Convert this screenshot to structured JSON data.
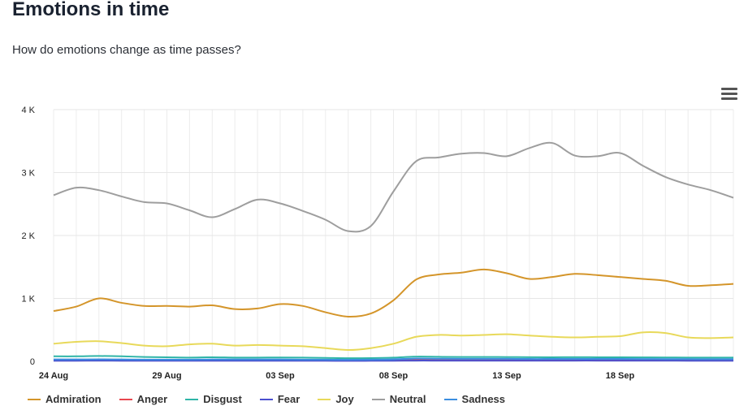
{
  "header": {
    "title": "Emotions in time",
    "subtitle": "How do emotions change as time passes?"
  },
  "menu_icon": "hamburger-menu-icon",
  "chart_data": {
    "type": "line",
    "x": [
      "2021-08-24",
      "2021-08-25",
      "2021-08-26",
      "2021-08-27",
      "2021-08-28",
      "2021-08-29",
      "2021-08-30",
      "2021-08-31",
      "2021-09-01",
      "2021-09-02",
      "2021-09-03",
      "2021-09-04",
      "2021-09-05",
      "2021-09-06",
      "2021-09-07",
      "2021-09-08",
      "2021-09-09",
      "2021-09-10",
      "2021-09-11",
      "2021-09-12",
      "2021-09-13",
      "2021-09-14",
      "2021-09-15",
      "2021-09-16",
      "2021-09-17",
      "2021-09-18",
      "2021-09-19",
      "2021-09-20",
      "2021-09-21",
      "2021-09-22",
      "2021-09-23"
    ],
    "x_tick_labels": [
      "24 Aug",
      "29 Aug",
      "03 Sep",
      "08 Sep",
      "13 Sep",
      "18 Sep"
    ],
    "x_tick_dates": [
      "2021-08-24",
      "2021-08-29",
      "2021-09-03",
      "2021-09-08",
      "2021-09-13",
      "2021-09-18"
    ],
    "y_tick_labels": [
      "0",
      "1 K",
      "2 K",
      "3 K",
      "4 K"
    ],
    "ylim": [
      0,
      4000
    ],
    "grid": true,
    "legend_position": "bottom",
    "series": [
      {
        "name": "Admiration",
        "color": "#d4952a",
        "values": [
          800,
          870,
          1000,
          930,
          880,
          880,
          870,
          890,
          830,
          840,
          910,
          880,
          780,
          710,
          760,
          970,
          1300,
          1380,
          1410,
          1460,
          1400,
          1310,
          1340,
          1390,
          1370,
          1340,
          1310,
          1280,
          1200,
          1210,
          1230
        ]
      },
      {
        "name": "Anger",
        "color": "#e8474f",
        "values": [
          20,
          20,
          22,
          20,
          18,
          18,
          17,
          18,
          17,
          17,
          18,
          17,
          16,
          15,
          16,
          18,
          22,
          22,
          22,
          23,
          22,
          21,
          21,
          22,
          22,
          21,
          21,
          20,
          20,
          20,
          20
        ]
      },
      {
        "name": "Disgust",
        "color": "#2fb5a7",
        "values": [
          80,
          80,
          85,
          80,
          70,
          65,
          60,
          65,
          60,
          60,
          62,
          60,
          55,
          50,
          52,
          60,
          75,
          72,
          70,
          70,
          68,
          66,
          65,
          66,
          65,
          64,
          63,
          62,
          60,
          60,
          60
        ]
      },
      {
        "name": "Fear",
        "color": "#4a4fcf",
        "values": [
          10,
          10,
          12,
          10,
          10,
          10,
          9,
          10,
          9,
          9,
          10,
          9,
          9,
          8,
          9,
          10,
          12,
          12,
          12,
          12,
          12,
          11,
          11,
          12,
          12,
          11,
          11,
          11,
          10,
          10,
          10
        ]
      },
      {
        "name": "Joy",
        "color": "#e8d95a",
        "values": [
          280,
          310,
          320,
          290,
          250,
          240,
          270,
          280,
          250,
          260,
          250,
          240,
          210,
          180,
          210,
          280,
          390,
          420,
          410,
          420,
          430,
          410,
          390,
          380,
          390,
          400,
          460,
          450,
          380,
          370,
          380
        ]
      },
      {
        "name": "Neutral",
        "color": "#9e9e9e",
        "values": [
          2640,
          2760,
          2720,
          2620,
          2530,
          2510,
          2400,
          2290,
          2420,
          2570,
          2510,
          2390,
          2250,
          2070,
          2150,
          2700,
          3180,
          3240,
          3300,
          3310,
          3260,
          3390,
          3470,
          3270,
          3260,
          3310,
          3110,
          2930,
          2810,
          2720,
          2600
        ]
      },
      {
        "name": "Sadness",
        "color": "#3b8ee0",
        "values": [
          30,
          30,
          32,
          30,
          28,
          27,
          28,
          30,
          30,
          30,
          30,
          28,
          27,
          26,
          28,
          32,
          45,
          42,
          40,
          40,
          40,
          38,
          38,
          38,
          38,
          38,
          37,
          36,
          35,
          34,
          34
        ]
      }
    ]
  }
}
